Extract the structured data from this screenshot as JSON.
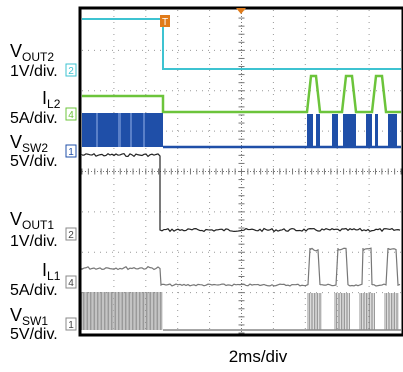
{
  "chart_data": {
    "type": "line",
    "title": "",
    "xlabel": "2ms/div",
    "ylabel": "",
    "grid": true,
    "time_per_div_ms": 2,
    "xlim_ms": [
      0,
      20
    ],
    "channels": [
      {
        "label_main": "V",
        "label_sub": "OUT2",
        "scale": "1V/div.",
        "marker": "2",
        "color": "#3ec3d1",
        "description_levels": {
          "before_off": "high",
          "after_off": "lower"
        }
      },
      {
        "label_main": "I",
        "label_sub": "L2",
        "scale": "5A/div.",
        "marker": "4",
        "color": "#6cc43b"
      },
      {
        "label_main": "V",
        "label_sub": "SW2",
        "scale": "5V/div.",
        "marker": "1",
        "color": "#1f4fa8"
      },
      {
        "label_main": "V",
        "label_sub": "OUT1",
        "scale": "1V/div.",
        "marker": "2",
        "color": "#222222"
      },
      {
        "label_main": "I",
        "label_sub": "L1",
        "scale": "5A/div.",
        "marker": "4",
        "color": "#777777"
      },
      {
        "label_main": "V",
        "label_sub": "SW1",
        "scale": "5V/div.",
        "marker": "1",
        "color": "#888888"
      }
    ],
    "trigger_marker": "T"
  }
}
